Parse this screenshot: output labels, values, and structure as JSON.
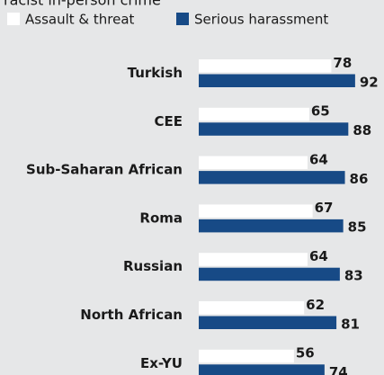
{
  "chart_data": {
    "type": "bar",
    "orientation": "horizontal",
    "title": "racist in-person crime",
    "categories": [
      "Turkish",
      "CEE",
      "Sub-Saharan African",
      "Roma",
      "Russian",
      "North African",
      "Ex-YU"
    ],
    "series": [
      {
        "name": "Assault & threat",
        "color": "#ffffff",
        "values": [
          78,
          65,
          64,
          67,
          64,
          62,
          56
        ]
      },
      {
        "name": "Serious harassment",
        "color": "#174a86",
        "values": [
          92,
          88,
          86,
          85,
          83,
          81,
          74
        ]
      }
    ]
  }
}
